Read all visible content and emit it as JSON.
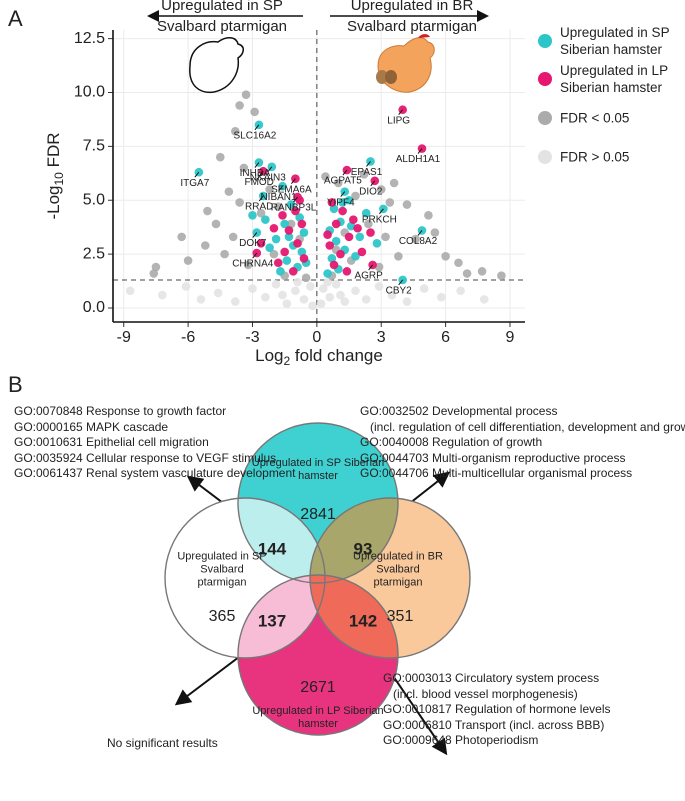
{
  "panel_labels": [
    "A",
    "B"
  ],
  "chart_data": {
    "type": "scatter",
    "header_left": [
      "Upregulated in SP",
      "Svalbard ptarmigan"
    ],
    "header_right": [
      "Upregulated in BR",
      "Svalbard ptarmigan"
    ],
    "x_label": [
      "Log",
      "2",
      " fold change"
    ],
    "y_label": [
      "-Log",
      "10",
      " FDR"
    ],
    "xlim": [
      -9.5,
      9.7
    ],
    "ylim": [
      -0.65,
      12.9
    ],
    "xticks": [
      -9,
      -6,
      -3,
      0,
      3,
      6,
      9
    ],
    "yticks": [
      {
        "value": 0,
        "label": "0.0"
      },
      2.5,
      {
        "value": 5,
        "label": "5.0"
      },
      7.5,
      {
        "value": 10,
        "label": "10.0"
      },
      12.5
    ],
    "grid": true,
    "threshold_x": 0,
    "threshold_y": 1.3,
    "series": [
      {
        "name": "Upregulated in SP Siberian hamster",
        "color": "#2cc6c8",
        "x": [
          -2.7,
          -2.7,
          -2.1,
          -5.5,
          -1.6,
          -2.5,
          -2.8,
          2.5,
          1.3,
          3.1,
          4.9,
          4.0,
          -1.2,
          -0.8,
          -1.5,
          -0.6,
          -1.9,
          -1.1,
          -0.7,
          -2.2,
          -1.4,
          -0.9,
          -1.7,
          -0.5,
          -2.4,
          -1.3,
          -3.0,
          0.8,
          1.1,
          0.6,
          1.6,
          0.9,
          1.3,
          2.0,
          0.7,
          1.8,
          1.0,
          2.3,
          1.5,
          2.8,
          0.5,
          1.2
        ],
        "values": [
          8.5,
          6.75,
          6.55,
          6.3,
          5.65,
          5.2,
          3.5,
          6.8,
          5.4,
          4.6,
          3.6,
          1.3,
          4.8,
          4.2,
          3.9,
          3.5,
          3.2,
          2.9,
          2.6,
          2.8,
          2.2,
          1.9,
          1.7,
          2.1,
          4.1,
          3.3,
          4.3,
          4.6,
          4.0,
          3.6,
          3.8,
          3.1,
          2.7,
          3.3,
          2.3,
          2.4,
          1.8,
          4.4,
          5.0,
          3.0,
          1.6,
          4.9
        ],
        "labels": [
          "SLC16A2",
          "INHBA",
          "NKAIN3",
          "ITGA7",
          "NIBAN1",
          "RRAD",
          "DOK7",
          "EPAS1",
          "YIPF4",
          "PRKCH",
          "COL8A2",
          "CBY2",
          null,
          null,
          null,
          null,
          null,
          null,
          null,
          null,
          null,
          null,
          null,
          null,
          null,
          null,
          null,
          null,
          null,
          null,
          null,
          null,
          null,
          null,
          null,
          null,
          null,
          null,
          null,
          null,
          null,
          null
        ]
      },
      {
        "name": "Upregulated in LP Siberian hamster",
        "color": "#e5176f",
        "x": [
          -2.5,
          -1.0,
          -0.9,
          -2.8,
          4.0,
          4.9,
          1.4,
          2.7,
          2.6,
          -1.0,
          -1.6,
          -0.7,
          -1.3,
          -2.0,
          -0.9,
          -1.5,
          -0.6,
          -1.8,
          -1.1,
          -2.6,
          -0.8,
          0.7,
          1.2,
          0.9,
          1.5,
          0.6,
          1.9,
          1.1,
          2.1,
          0.8,
          1.4,
          2.5,
          1.7,
          0.5
        ],
        "values": [
          6.35,
          6.0,
          5.15,
          2.55,
          9.2,
          7.4,
          6.4,
          5.9,
          2.0,
          4.5,
          4.3,
          3.9,
          3.6,
          3.7,
          3.0,
          2.6,
          2.3,
          2.1,
          1.7,
          3.0,
          5.0,
          4.9,
          4.5,
          3.9,
          3.3,
          2.9,
          3.7,
          2.5,
          2.6,
          2.0,
          1.7,
          3.5,
          4.1,
          3.4
        ],
        "labels": [
          "FMOD",
          "SEMA6A",
          "RANBP3L",
          "CHRNA4",
          "LIPG",
          "ALDH1A1",
          "AGPAT5",
          "DIO2",
          "AGRP",
          null,
          null,
          null,
          null,
          null,
          null,
          null,
          null,
          null,
          null,
          null,
          null,
          null,
          null,
          null,
          null,
          null,
          null,
          null,
          null,
          null,
          null,
          null,
          null,
          null
        ]
      },
      {
        "name": "FDR < 0.05",
        "color": "#ababab",
        "x": [
          -3.3,
          -3.6,
          -2.9,
          -3.8,
          -4.5,
          -3.4,
          -4.1,
          -3.6,
          -5.1,
          -4.7,
          -6.3,
          -7.5,
          -7.6,
          -6.0,
          -5.2,
          -4.3,
          -3.9,
          -3.2,
          -2.2,
          -1.8,
          -2.6,
          -1.2,
          -0.8,
          -1.5,
          -2.0,
          -0.5,
          0.4,
          1.0,
          1.8,
          2.2,
          3.0,
          3.4,
          3.6,
          4.2,
          5.2,
          5.5,
          4.6,
          6.0,
          6.6,
          7.0,
          7.7,
          8.6,
          3.8,
          2.9,
          0.7,
          1.3,
          2.4,
          3.2,
          0.9,
          1.6
        ],
        "values": [
          9.9,
          9.4,
          9.1,
          8.2,
          7.0,
          6.5,
          5.4,
          4.9,
          4.5,
          3.9,
          3.3,
          1.9,
          1.6,
          2.2,
          2.9,
          2.5,
          3.3,
          2.0,
          5.5,
          4.7,
          4.4,
          3.9,
          3.2,
          1.5,
          2.5,
          1.4,
          6.1,
          5.8,
          5.2,
          6.2,
          5.5,
          4.9,
          5.8,
          4.8,
          4.3,
          3.5,
          3.2,
          2.4,
          2.1,
          1.6,
          1.7,
          1.5,
          2.4,
          1.9,
          1.5,
          3.5,
          3.9,
          3.3,
          2.7,
          2.2
        ]
      },
      {
        "name": "FDR > 0.05",
        "color": "#e3e3e3",
        "x": [
          -8.7,
          -7.2,
          -6.1,
          -5.4,
          -4.6,
          -3.8,
          -3.0,
          -2.4,
          -1.9,
          -1.4,
          -1.0,
          -0.6,
          -0.3,
          -0.2,
          0.2,
          0.3,
          0.6,
          0.9,
          1.3,
          1.8,
          2.3,
          2.9,
          3.5,
          4.2,
          5.0,
          5.8,
          6.7,
          7.8,
          -1.6,
          1.1,
          -0.9,
          0.5
        ],
        "values": [
          0.8,
          0.6,
          1.0,
          0.4,
          0.7,
          0.3,
          0.9,
          0.5,
          1.1,
          0.2,
          0.8,
          0.4,
          1.0,
          0.1,
          0.2,
          0.9,
          0.5,
          1.1,
          0.3,
          0.8,
          0.4,
          1.0,
          0.6,
          0.3,
          0.9,
          0.5,
          0.8,
          0.4,
          0.6,
          0.6,
          1.2,
          1.2
        ]
      }
    ]
  },
  "venn": {
    "sets": [
      {
        "name": "Upregulated in SP Siberian hamster",
        "count": 2841,
        "color": "#3fd1d1"
      },
      {
        "name": "Upregulated in SP Svalbard ptarmigan",
        "count": 365,
        "color": "#ffffff"
      },
      {
        "name": "Upregulated in BR Svalbard ptarmigan",
        "count": 351,
        "color": "#f9c89b"
      },
      {
        "name": "Upregulated in LP Siberian hamster",
        "count": 2671,
        "color": "#e8347f"
      }
    ],
    "overlaps": [
      {
        "count": 144,
        "terms": [
          "GO:0070848 Response to growth factor",
          "GO:0000165 MAPK cascade",
          "GO:0010631 Epithelial cell migration",
          "GO:0035924 Cellular response to VEGF stimulus",
          "GO:0061437 Renal system vasculature development"
        ]
      },
      {
        "count": 93,
        "terms": [
          "GO:0032502 Developmental process",
          "(incl. regulation of cell differentiation, development and growth)",
          "GO:0040008 Regulation of growth",
          "GO:0044703 Multi-organism reproductive process",
          "GO:0044706 Multi-multicellular organismal process"
        ]
      },
      {
        "count": 137,
        "terms": [
          "No significant results"
        ]
      },
      {
        "count": 142,
        "terms": [
          "GO:0003013 Circulatory system process",
          "(incl. blood vessel morphogenesis)",
          "GO:0010817 Regulation of hormone levels",
          "GO:0006810 Transport (incl. across BBB)",
          "GO:0009648 Photoperiodism"
        ]
      }
    ]
  }
}
